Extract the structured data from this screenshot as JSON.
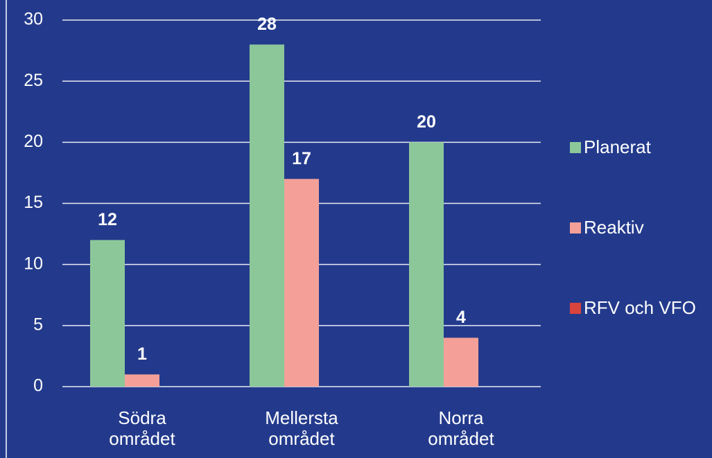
{
  "chart_data": {
    "type": "bar",
    "categories": [
      "Södra området",
      "Mellersta området",
      "Norra området"
    ],
    "series": [
      {
        "name": "Planerat",
        "color": "#8cc79a",
        "values": [
          12,
          28,
          20
        ]
      },
      {
        "name": "Reaktiv",
        "color": "#f4a098",
        "values": [
          1,
          17,
          4
        ]
      },
      {
        "name": "RFV och VFO",
        "color": "#d9443c",
        "values": [
          null,
          null,
          null
        ]
      }
    ],
    "ylim": [
      0,
      30
    ],
    "yticks": [
      0,
      5,
      10,
      15,
      20,
      25,
      30
    ],
    "grid": true,
    "legend": "right"
  }
}
